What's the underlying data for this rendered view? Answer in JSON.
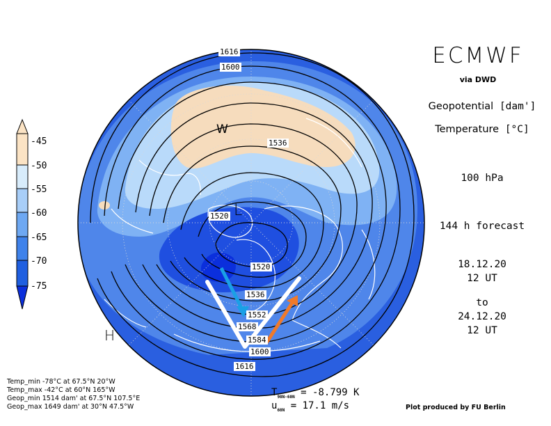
{
  "header": {
    "brand": "ECMWF",
    "via": "via DWD"
  },
  "legend_right": {
    "variable_1": "Geopotential",
    "unit_1": "[dam']",
    "variable_2": "Temperature",
    "unit_2": "[°C]",
    "level": "100 hPa",
    "forecast": "144 h forecast",
    "start_date": "18.12.20",
    "start_time": "12 UT",
    "to": "to",
    "end_date": "24.12.20",
    "end_time": "12 UT"
  },
  "colorbar": {
    "ticks": [
      "-45",
      "-50",
      "-55",
      "-60",
      "-65",
      "-70",
      "-75"
    ],
    "colors": [
      "#fbe3c4",
      "#d8ecfb",
      "#a8cef8",
      "#6ea8f2",
      "#3f82ea",
      "#1f5fe0",
      "#0b2fdc"
    ]
  },
  "contour_labels": [
    "1616",
    "1600",
    "1536",
    "1520",
    "1520",
    "1536",
    "1552",
    "1568",
    "1584",
    "1600",
    "1616"
  ],
  "markers": {
    "low": "L",
    "high": "H",
    "warm": "W"
  },
  "stats": {
    "temp_min": "Temp_min -78°C at 67.5°N 20°W",
    "temp_max": "Temp_max -42°C at 60°N 165°W",
    "geop_min": "Geop_min 1514 dam' at 67.5°N 107.5°E",
    "geop_max": "Geop_max 1649 dam' at 30°N 47.5°W"
  },
  "diagnostics": {
    "t_symbol": "T",
    "t_sub": "90N-60N",
    "t_value": "= -8.799 K",
    "u_symbol": "u",
    "u_sub": "60N",
    "u_value": "= 17.1 m/s"
  },
  "credit": "Plot produced by FU Berlin",
  "map_colors": {
    "ocean_blue": "#2a5fe0",
    "mid_blue": "#5f9bf0",
    "light_blue": "#a9cff8",
    "pale_blue": "#d9ecfb",
    "warm": "#f6dcbd",
    "deep_blue": "#0b2fdc",
    "arrow_cyan": "#1aa0e6",
    "arrow_orange": "#f07a2a"
  }
}
